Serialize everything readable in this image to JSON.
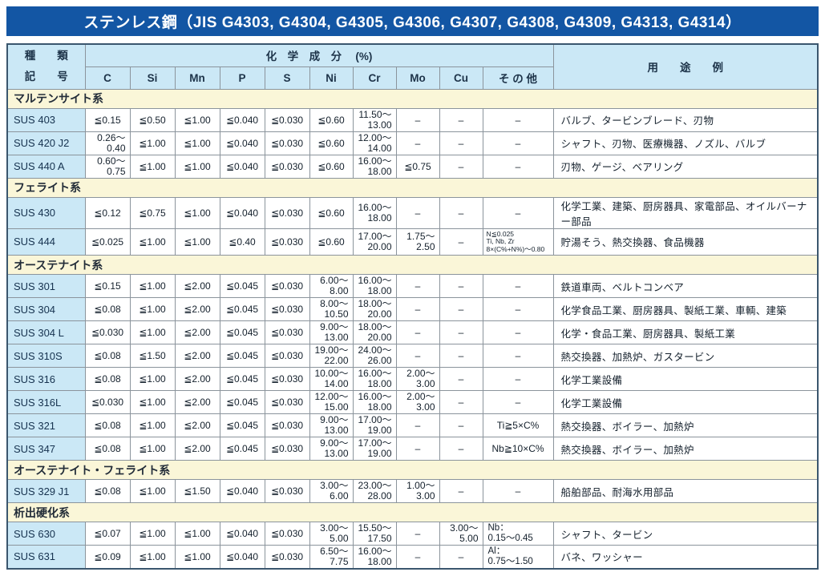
{
  "title": "ステンレス鋼（JIS G4303, G4304, G4305, G4306, G4307, G4308, G4309, G4313, G4314）",
  "colors": {
    "title_bar": "#1356a4",
    "header_blue": "#cbe8f6",
    "section_yellow": "#faf6d8",
    "border_gray": "#8b949c",
    "outer_border": "#3a566e"
  },
  "table": {
    "header": {
      "kind_top": "種　　類",
      "kind_bottom": "記　　号",
      "chem_label": "化　学　成　分　 (%)",
      "elements": [
        "C",
        "Si",
        "Mn",
        "P",
        "S",
        "Ni",
        "Cr",
        "Mo",
        "Cu",
        "そ の 他"
      ],
      "usage_label": "用　　途　　例"
    },
    "sections": [
      {
        "name": "マルテンサイト系",
        "rows": [
          {
            "code": "SUS 403",
            "cells": [
              "≦0.15",
              "≦0.50",
              "≦1.00",
              "≦0.040",
              "≦0.030",
              "≦0.60",
              {
                "r": [
                  "11.50～",
                  "13.00"
                ]
              },
              "–",
              "–",
              "–"
            ],
            "use": "バルブ、タービンブレード、刃物"
          },
          {
            "code": "SUS 420 J2",
            "cells": [
              {
                "r": [
                  "0.26～",
                  "0.40"
                ]
              },
              "≦1.00",
              "≦1.00",
              "≦0.040",
              "≦0.030",
              "≦0.60",
              {
                "r": [
                  "12.00～",
                  "14.00"
                ]
              },
              "–",
              "–",
              "–"
            ],
            "use": "シャフト、刃物、医療機器、ノズル、バルブ"
          },
          {
            "code": "SUS 440 A",
            "cells": [
              {
                "r": [
                  "0.60～",
                  "0.75"
                ]
              },
              "≦1.00",
              "≦1.00",
              "≦0.040",
              "≦0.030",
              "≦0.60",
              {
                "r": [
                  "16.00～",
                  "18.00"
                ]
              },
              "≦0.75",
              "–",
              "–"
            ],
            "use": "刃物、ゲージ、ベアリング"
          }
        ]
      },
      {
        "name": "フェライト系",
        "rows": [
          {
            "code": "SUS 430",
            "cells": [
              "≦0.12",
              "≦0.75",
              "≦1.00",
              "≦0.040",
              "≦0.030",
              "≦0.60",
              {
                "r": [
                  "16.00～",
                  "18.00"
                ]
              },
              "–",
              "–",
              "–"
            ],
            "use": "化学工業、建築、厨房器具、家電部品、オイルバーナー部品"
          },
          {
            "code": "SUS 444",
            "cells": [
              "≦0.025",
              "≦1.00",
              "≦1.00",
              "≦0.40",
              "≦0.030",
              "≦0.60",
              {
                "r": [
                  "17.00～",
                  "20.00"
                ]
              },
              {
                "r": [
                  "1.75～",
                  "2.50"
                ]
              },
              "–",
              {
                "s": [
                  "N≦0.025",
                  "Ti, Nb, Zr",
                  "8×(C%+N%)～0.80"
                ]
              }
            ],
            "use": "貯湯そう、熱交換器、食品機器"
          }
        ]
      },
      {
        "name": "オーステナイト系",
        "rows": [
          {
            "code": "SUS 301",
            "cells": [
              "≦0.15",
              "≦1.00",
              "≦2.00",
              "≦0.045",
              "≦0.030",
              {
                "r": [
                  "6.00～",
                  "8.00"
                ]
              },
              {
                "r": [
                  "16.00～",
                  "18.00"
                ]
              },
              "–",
              "–",
              "–"
            ],
            "use": "鉄道車両、ベルトコンベア"
          },
          {
            "code": "SUS 304",
            "cells": [
              "≦0.08",
              "≦1.00",
              "≦2.00",
              "≦0.045",
              "≦0.030",
              {
                "r": [
                  "8.00～",
                  "10.50"
                ]
              },
              {
                "r": [
                  "18.00～",
                  "20.00"
                ]
              },
              "–",
              "–",
              "–"
            ],
            "use": "化学食品工業、厨房器具、製紙工業、車輌、建築"
          },
          {
            "code": "SUS 304 L",
            "cells": [
              "≦0.030",
              "≦1.00",
              "≦2.00",
              "≦0.045",
              "≦0.030",
              {
                "r": [
                  "9.00～",
                  "13.00"
                ]
              },
              {
                "r": [
                  "18.00～",
                  "20.00"
                ]
              },
              "–",
              "–",
              "–"
            ],
            "use": "化学・食品工業、厨房器具、製紙工業"
          },
          {
            "code": "SUS 310S",
            "cells": [
              "≦0.08",
              "≦1.50",
              "≦2.00",
              "≦0.045",
              "≦0.030",
              {
                "r": [
                  "19.00～",
                  "22.00"
                ]
              },
              {
                "r": [
                  "24.00～",
                  "26.00"
                ]
              },
              "–",
              "–",
              "–"
            ],
            "use": "熱交換器、加熱炉、ガスタービン"
          },
          {
            "code": "SUS 316",
            "cells": [
              "≦0.08",
              "≦1.00",
              "≦2.00",
              "≦0.045",
              "≦0.030",
              {
                "r": [
                  "10.00～",
                  "14.00"
                ]
              },
              {
                "r": [
                  "16.00～",
                  "18.00"
                ]
              },
              {
                "r": [
                  "2.00～",
                  "3.00"
                ]
              },
              "–",
              "–"
            ],
            "use": "化学工業設備"
          },
          {
            "code": "SUS 316L",
            "cells": [
              "≦0.030",
              "≦1.00",
              "≦2.00",
              "≦0.045",
              "≦0.030",
              {
                "r": [
                  "12.00～",
                  "15.00"
                ]
              },
              {
                "r": [
                  "16.00～",
                  "18.00"
                ]
              },
              {
                "r": [
                  "2.00～",
                  "3.00"
                ]
              },
              "–",
              "–"
            ],
            "use": "化学工業設備"
          },
          {
            "code": "SUS 321",
            "cells": [
              "≦0.08",
              "≦1.00",
              "≦2.00",
              "≦0.045",
              "≦0.030",
              {
                "r": [
                  "9.00～",
                  "13.00"
                ]
              },
              {
                "r": [
                  "17.00～",
                  "19.00"
                ]
              },
              "–",
              "–",
              "Ti≧5×C%"
            ],
            "use": "熱交換器、ボイラー、加熱炉"
          },
          {
            "code": "SUS 347",
            "cells": [
              "≦0.08",
              "≦1.00",
              "≦2.00",
              "≦0.045",
              "≦0.030",
              {
                "r": [
                  "9.00～",
                  "13.00"
                ]
              },
              {
                "r": [
                  "17.00～",
                  "19.00"
                ]
              },
              "–",
              "–",
              "Nb≧10×C%"
            ],
            "use": "熱交換器、ボイラー、加熱炉"
          }
        ]
      },
      {
        "name": "オーステナイト・フェライト系",
        "rows": [
          {
            "code": "SUS 329 J1",
            "cells": [
              "≦0.08",
              "≦1.00",
              "≦1.50",
              "≦0.040",
              "≦0.030",
              {
                "r": [
                  "3.00～",
                  "6.00"
                ]
              },
              {
                "r": [
                  "23.00～",
                  "28.00"
                ]
              },
              {
                "r": [
                  "1.00～",
                  "3.00"
                ]
              },
              "–",
              "–"
            ],
            "use": "船舶部品、耐海水用部品"
          }
        ]
      },
      {
        "name": "析出硬化系",
        "rows": [
          {
            "code": "SUS 630",
            "cells": [
              "≦0.07",
              "≦1.00",
              "≦1.00",
              "≦0.040",
              "≦0.030",
              {
                "r": [
                  "3.00～",
                  "5.00"
                ]
              },
              {
                "r": [
                  "15.50～",
                  "17.50"
                ]
              },
              "–",
              {
                "r": [
                  "3.00～",
                  "5.00"
                ]
              },
              {
                "l": [
                  "Nb：",
                  "0.15～0.45"
                ]
              }
            ],
            "use": "シャフト、タービン"
          },
          {
            "code": "SUS 631",
            "cells": [
              "≦0.09",
              "≦1.00",
              "≦1.00",
              "≦0.040",
              "≦0.030",
              {
                "r": [
                  "6.50～",
                  "7.75"
                ]
              },
              {
                "r": [
                  "16.00～",
                  "18.00"
                ]
              },
              "–",
              "–",
              {
                "l": [
                  "Al：",
                  "0.75～1.50"
                ]
              }
            ],
            "use": "バネ、ワッシャー"
          }
        ]
      }
    ]
  }
}
